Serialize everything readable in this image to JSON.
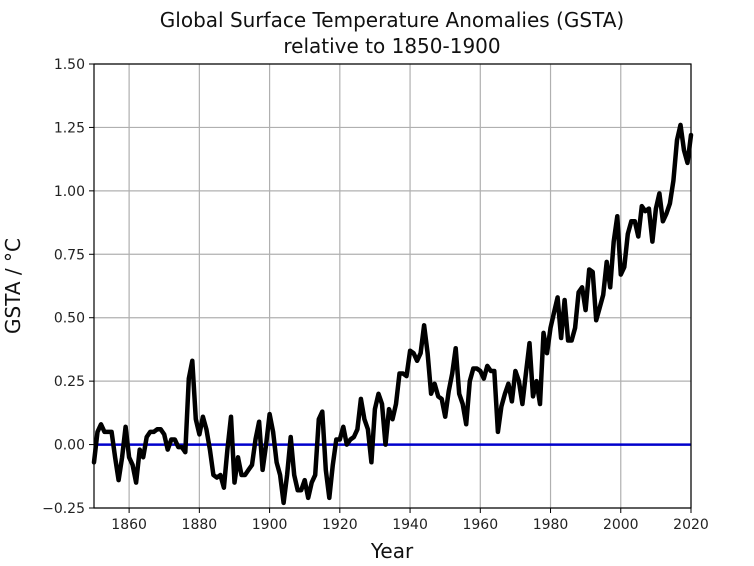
{
  "chart_data": {
    "type": "line",
    "title": "Global Surface Temperature Anomalies (GSTA)",
    "subtitle": "relative to 1850-1900",
    "xlabel": "Year",
    "ylabel": "GSTA / °C",
    "xlim": [
      1850,
      2020
    ],
    "ylim": [
      -0.25,
      1.5
    ],
    "xticks": [
      1860,
      1880,
      1900,
      1920,
      1940,
      1960,
      1980,
      2000,
      2020
    ],
    "yticks": [
      -0.25,
      0.0,
      0.25,
      0.5,
      0.75,
      1.0,
      1.25,
      1.5
    ],
    "ytick_labels": [
      "−0.25",
      "0.00",
      "0.25",
      "0.50",
      "0.75",
      "1.00",
      "1.25",
      "1.50"
    ],
    "grid": true,
    "reference_line": {
      "y": 0.0,
      "color": "#0000cc"
    },
    "series": [
      {
        "name": "GSTA",
        "color": "#000000",
        "x_start": 1850,
        "x_step": 1,
        "values": [
          -0.07,
          0.05,
          0.08,
          0.05,
          0.05,
          0.05,
          -0.05,
          -0.14,
          -0.05,
          0.07,
          -0.05,
          -0.08,
          -0.15,
          -0.02,
          -0.05,
          0.03,
          0.05,
          0.05,
          0.06,
          0.06,
          0.04,
          -0.02,
          0.02,
          0.02,
          -0.01,
          -0.01,
          -0.03,
          0.26,
          0.33,
          0.1,
          0.04,
          0.11,
          0.06,
          -0.02,
          -0.12,
          -0.13,
          -0.12,
          -0.17,
          -0.02,
          0.11,
          -0.15,
          -0.05,
          -0.12,
          -0.12,
          -0.1,
          -0.08,
          0.02,
          0.09,
          -0.1,
          0.0,
          0.12,
          0.05,
          -0.07,
          -0.12,
          -0.23,
          -0.12,
          0.03,
          -0.12,
          -0.18,
          -0.18,
          -0.14,
          -0.21,
          -0.15,
          -0.12,
          0.1,
          0.13,
          -0.1,
          -0.21,
          -0.08,
          0.02,
          0.02,
          0.07,
          0.0,
          0.02,
          0.03,
          0.06,
          0.18,
          0.1,
          0.06,
          -0.07,
          0.14,
          0.2,
          0.16,
          0.0,
          0.14,
          0.1,
          0.16,
          0.28,
          0.28,
          0.27,
          0.37,
          0.36,
          0.33,
          0.36,
          0.47,
          0.36,
          0.2,
          0.24,
          0.19,
          0.18,
          0.11,
          0.21,
          0.28,
          0.38,
          0.2,
          0.16,
          0.08,
          0.25,
          0.3,
          0.3,
          0.29,
          0.26,
          0.31,
          0.29,
          0.29,
          0.05,
          0.15,
          0.2,
          0.24,
          0.17,
          0.29,
          0.25,
          0.16,
          0.28,
          0.4,
          0.19,
          0.25,
          0.16,
          0.44,
          0.36,
          0.46,
          0.52,
          0.58,
          0.42,
          0.57,
          0.41,
          0.41,
          0.46,
          0.6,
          0.62,
          0.53,
          0.69,
          0.68,
          0.49,
          0.54,
          0.59,
          0.72,
          0.62,
          0.8,
          0.9,
          0.67,
          0.7,
          0.83,
          0.88,
          0.88,
          0.82,
          0.94,
          0.92,
          0.93,
          0.8,
          0.93,
          0.99,
          0.88,
          0.91,
          0.95,
          1.04,
          1.2,
          1.26,
          1.16,
          1.11,
          1.22
        ]
      }
    ]
  }
}
